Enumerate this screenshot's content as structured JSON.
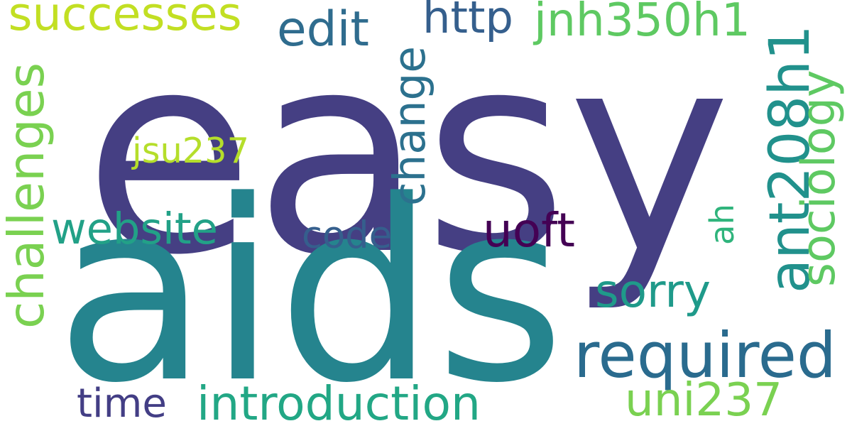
{
  "word_cloud": {
    "words": [
      {
        "text": "easy",
        "color": "#453f83",
        "orientation": "horizontal"
      },
      {
        "text": "aids",
        "color": "#25848e",
        "orientation": "horizontal"
      },
      {
        "text": "required",
        "color": "#2a6b8e",
        "orientation": "horizontal"
      },
      {
        "text": "ant208h1",
        "color": "#21918c",
        "orientation": "vertical"
      },
      {
        "text": "introduction",
        "color": "#22a785",
        "orientation": "horizontal"
      },
      {
        "text": "uni237",
        "color": "#7ad151",
        "orientation": "horizontal"
      },
      {
        "text": "challenges",
        "color": "#7ad151",
        "orientation": "vertical"
      },
      {
        "text": "successes",
        "color": "#c2df23",
        "orientation": "horizontal"
      },
      {
        "text": "jnh350h1",
        "color": "#5ec962",
        "orientation": "horizontal"
      },
      {
        "text": "sociology",
        "color": "#5ec962",
        "orientation": "vertical"
      },
      {
        "text": "website",
        "color": "#22a187",
        "orientation": "horizontal"
      },
      {
        "text": "change",
        "color": "#2c718e",
        "orientation": "vertical"
      },
      {
        "text": "sorry",
        "color": "#1f9a8a",
        "orientation": "horizontal"
      },
      {
        "text": "code",
        "color": "#355f8d",
        "orientation": "horizontal"
      },
      {
        "text": "uoft",
        "color": "#440154",
        "orientation": "horizontal"
      },
      {
        "text": "time",
        "color": "#433e85",
        "orientation": "horizontal"
      },
      {
        "text": "edit",
        "color": "#2f6c8e",
        "orientation": "horizontal"
      },
      {
        "text": "http",
        "color": "#355f8d",
        "orientation": "horizontal"
      },
      {
        "text": "ah",
        "color": "#2fb47c",
        "orientation": "vertical"
      },
      {
        "text": "jsu237",
        "color": "#b5de2b",
        "orientation": "horizontal"
      }
    ]
  }
}
